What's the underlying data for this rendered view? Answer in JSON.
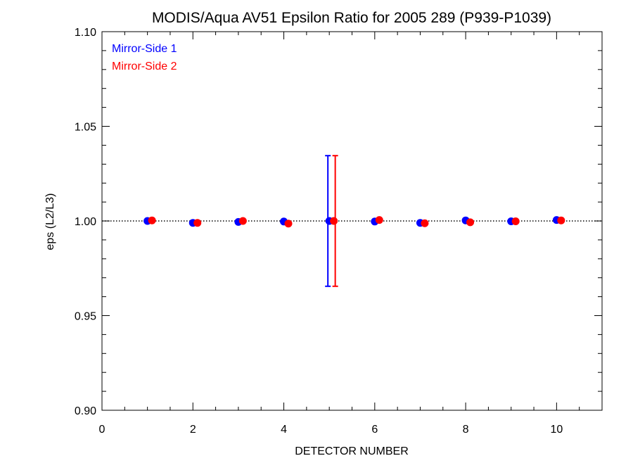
{
  "chart_data": {
    "type": "scatter",
    "title": "MODIS/Aqua AV51 Epsilon Ratio for 2005 289 (P939-P1039)",
    "xlabel": "DETECTOR NUMBER",
    "ylabel": "eps (L2/L3)",
    "xlim": [
      0,
      11
    ],
    "ylim": [
      0.9,
      1.1
    ],
    "x_ticks": [
      0,
      2,
      4,
      6,
      8,
      10
    ],
    "x_tick_labels": [
      "0",
      "2",
      "4",
      "6",
      "8",
      "10"
    ],
    "y_ticks": [
      0.9,
      0.95,
      1.0,
      1.05,
      1.1
    ],
    "y_tick_labels": [
      "0.90",
      "0.95",
      "1.00",
      "1.05",
      "1.10"
    ],
    "reference_line": 1.0,
    "grid": false,
    "legend_position": "top-left",
    "series": [
      {
        "name": "Mirror-Side 1",
        "color": "#0000ff",
        "x": [
          1,
          2,
          3,
          4,
          5,
          6,
          7,
          8,
          9,
          10
        ],
        "y": [
          1.0,
          0.999,
          0.9995,
          0.9997,
          1.0,
          0.9997,
          0.999,
          1.0003,
          0.9998,
          1.0005
        ],
        "error_bars": [
          {
            "x": 5,
            "low": 0.9655,
            "high": 1.0345
          }
        ]
      },
      {
        "name": "Mirror-Side 2",
        "color": "#ff0000",
        "x": [
          1.1,
          2.1,
          3.1,
          4.1,
          5.1,
          6.1,
          7.1,
          8.1,
          9.1,
          10.1
        ],
        "y": [
          1.0003,
          0.999,
          1.0,
          0.9986,
          1.0,
          1.0005,
          0.9988,
          0.9993,
          0.9998,
          1.0003
        ],
        "error_bars": [
          {
            "x": 5.1,
            "low": 0.9655,
            "high": 1.0345
          }
        ]
      }
    ]
  }
}
